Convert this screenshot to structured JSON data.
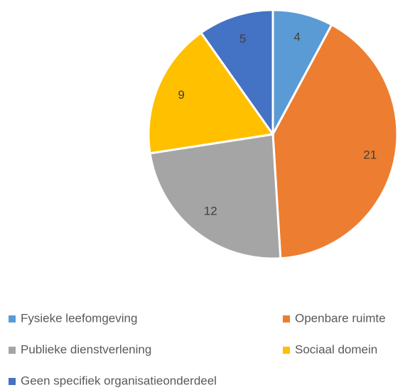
{
  "chart_data": {
    "type": "pie",
    "categories": [
      "Fysieke leefomgeving",
      "Openbare ruimte",
      "Publieke dienstverlening",
      "Sociaal domein",
      "Geen specifiek organisatieonderdeel"
    ],
    "values": [
      4,
      21,
      12,
      9,
      5
    ],
    "colors": [
      "#5b9bd5",
      "#ed7d31",
      "#a5a5a5",
      "#ffc000",
      "#4472c4"
    ],
    "legend": "bottom"
  }
}
